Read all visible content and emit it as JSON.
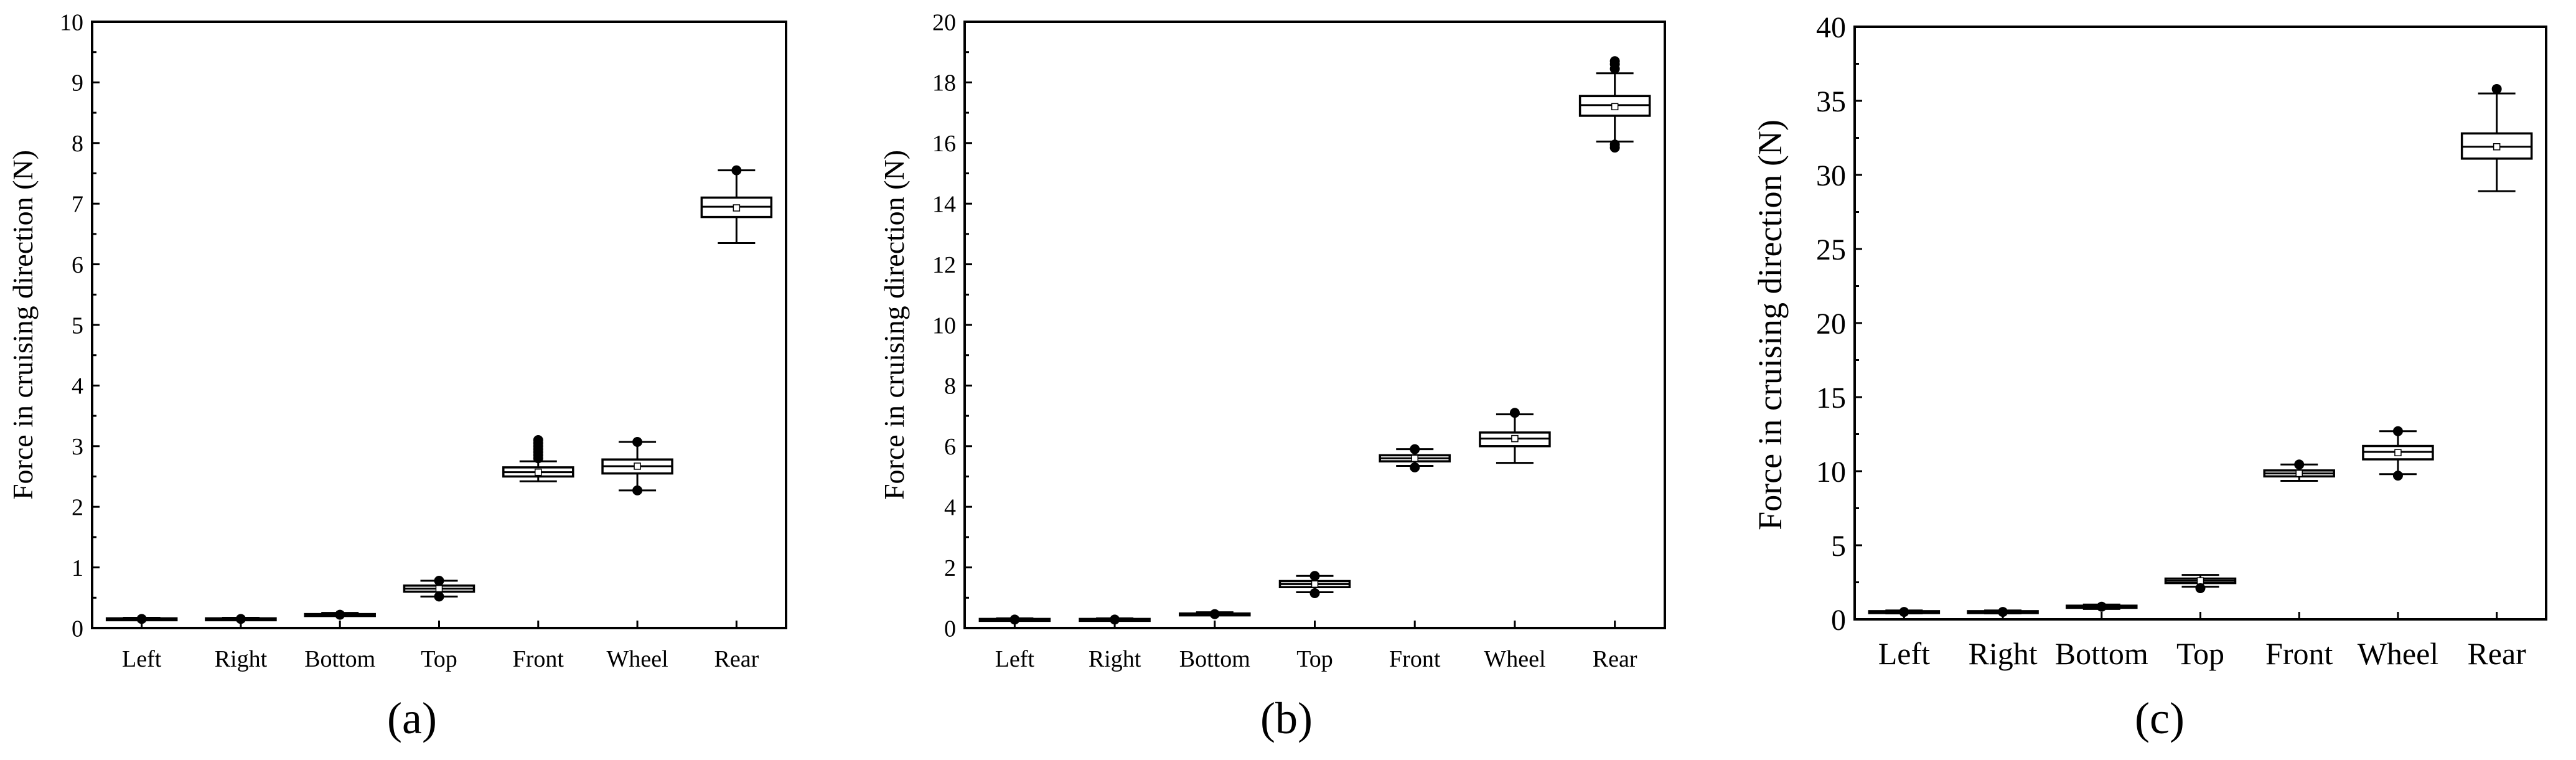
{
  "chart_data": [
    {
      "type": "box",
      "panel_label": "(a)",
      "ylabel": "Force in cruising direction (N)",
      "ylim": [
        0,
        10
      ],
      "yticks": [
        "0",
        "1",
        "2",
        "3",
        "4",
        "5",
        "6",
        "7",
        "8",
        "9",
        "10"
      ],
      "ytick_values": [
        0,
        1,
        2,
        3,
        4,
        5,
        6,
        7,
        8,
        9,
        10
      ],
      "minor_ticks": true,
      "categories": [
        "Left",
        "Right",
        "Bottom",
        "Top",
        "Front",
        "Wheel",
        "Rear"
      ],
      "boxes": [
        {
          "category": "Left",
          "whisker_low": 0.13,
          "q1": 0.14,
          "median": 0.15,
          "q3": 0.16,
          "whisker_high": 0.17,
          "mean": 0.15,
          "outliers": [
            0.15
          ]
        },
        {
          "category": "Right",
          "whisker_low": 0.13,
          "q1": 0.14,
          "median": 0.15,
          "q3": 0.16,
          "whisker_high": 0.17,
          "mean": 0.15,
          "outliers": [
            0.15
          ]
        },
        {
          "category": "Bottom",
          "whisker_low": 0.2,
          "q1": 0.21,
          "median": 0.22,
          "q3": 0.23,
          "whisker_high": 0.25,
          "mean": 0.22,
          "outliers": [
            0.22
          ]
        },
        {
          "category": "Top",
          "whisker_low": 0.52,
          "q1": 0.6,
          "median": 0.65,
          "q3": 0.7,
          "whisker_high": 0.78,
          "mean": 0.65,
          "outliers": [
            0.52,
            0.78
          ]
        },
        {
          "category": "Front",
          "whisker_low": 2.42,
          "q1": 2.5,
          "median": 2.57,
          "q3": 2.65,
          "whisker_high": 2.75,
          "mean": 2.57,
          "outliers": [
            2.8,
            2.85,
            2.9,
            2.95,
            3.0,
            3.05,
            3.1
          ]
        },
        {
          "category": "Wheel",
          "whisker_low": 2.27,
          "q1": 2.55,
          "median": 2.67,
          "q3": 2.78,
          "whisker_high": 3.07,
          "mean": 2.67,
          "outliers": [
            2.27,
            3.07
          ]
        },
        {
          "category": "Rear",
          "whisker_low": 6.35,
          "q1": 6.78,
          "median": 6.95,
          "q3": 7.1,
          "whisker_high": 7.55,
          "mean": 6.93,
          "outliers": [
            7.55
          ]
        }
      ]
    },
    {
      "type": "box",
      "panel_label": "(b)",
      "ylabel": "Force in cruising direction (N)",
      "ylim": [
        0,
        20
      ],
      "yticks": [
        "0",
        "2",
        "4",
        "6",
        "8",
        "10",
        "12",
        "14",
        "16",
        "18",
        "20"
      ],
      "ytick_values": [
        0,
        2,
        4,
        6,
        8,
        10,
        12,
        14,
        16,
        18,
        20
      ],
      "minor_ticks": true,
      "categories": [
        "Left",
        "Right",
        "Bottom",
        "Top",
        "Front",
        "Wheel",
        "Rear"
      ],
      "boxes": [
        {
          "category": "Left",
          "whisker_low": 0.25,
          "q1": 0.27,
          "median": 0.28,
          "q3": 0.3,
          "whisker_high": 0.32,
          "mean": 0.28,
          "outliers": [
            0.28
          ]
        },
        {
          "category": "Right",
          "whisker_low": 0.25,
          "q1": 0.27,
          "median": 0.28,
          "q3": 0.3,
          "whisker_high": 0.32,
          "mean": 0.28,
          "outliers": [
            0.28
          ]
        },
        {
          "category": "Bottom",
          "whisker_low": 0.42,
          "q1": 0.44,
          "median": 0.46,
          "q3": 0.48,
          "whisker_high": 0.52,
          "mean": 0.46,
          "outliers": [
            0.46
          ]
        },
        {
          "category": "Top",
          "whisker_low": 1.18,
          "q1": 1.35,
          "median": 1.45,
          "q3": 1.55,
          "whisker_high": 1.72,
          "mean": 1.45,
          "outliers": [
            1.15,
            1.72
          ]
        },
        {
          "category": "Front",
          "whisker_low": 5.35,
          "q1": 5.5,
          "median": 5.6,
          "q3": 5.7,
          "whisker_high": 5.9,
          "mean": 5.6,
          "outliers": [
            5.3,
            5.9
          ]
        },
        {
          "category": "Wheel",
          "whisker_low": 5.45,
          "q1": 6.0,
          "median": 6.25,
          "q3": 6.45,
          "whisker_high": 7.05,
          "mean": 6.25,
          "outliers": [
            7.1
          ]
        },
        {
          "category": "Rear",
          "whisker_low": 16.05,
          "q1": 16.9,
          "median": 17.25,
          "q3": 17.55,
          "whisker_high": 18.3,
          "mean": 17.2,
          "outliers": [
            15.85,
            15.95,
            18.45,
            18.6,
            18.7
          ]
        }
      ]
    },
    {
      "type": "box",
      "panel_label": "(c)",
      "ylabel": "Force in cruising direction (N)",
      "ylim": [
        0,
        40
      ],
      "yticks": [
        "0",
        "5",
        "10",
        "15",
        "20",
        "25",
        "30",
        "35",
        "40"
      ],
      "ytick_values": [
        0,
        5,
        10,
        15,
        20,
        25,
        30,
        35,
        40
      ],
      "minor_ticks": true,
      "categories": [
        "Left",
        "Right",
        "Bottom",
        "Top",
        "Front",
        "Wheel",
        "Rear"
      ],
      "boxes": [
        {
          "category": "Left",
          "whisker_low": 0.4,
          "q1": 0.45,
          "median": 0.5,
          "q3": 0.55,
          "whisker_high": 0.6,
          "mean": 0.5,
          "outliers": [
            0.5
          ]
        },
        {
          "category": "Right",
          "whisker_low": 0.4,
          "q1": 0.45,
          "median": 0.5,
          "q3": 0.55,
          "whisker_high": 0.6,
          "mean": 0.5,
          "outliers": [
            0.5
          ]
        },
        {
          "category": "Bottom",
          "whisker_low": 0.7,
          "q1": 0.78,
          "median": 0.85,
          "q3": 0.92,
          "whisker_high": 1.0,
          "mean": 0.85,
          "outliers": [
            0.85
          ]
        },
        {
          "category": "Top",
          "whisker_low": 2.2,
          "q1": 2.45,
          "median": 2.6,
          "q3": 2.75,
          "whisker_high": 3.0,
          "mean": 2.6,
          "outliers": [
            2.1
          ]
        },
        {
          "category": "Front",
          "whisker_low": 9.35,
          "q1": 9.65,
          "median": 9.85,
          "q3": 10.05,
          "whisker_high": 10.45,
          "mean": 9.85,
          "outliers": [
            10.45
          ]
        },
        {
          "category": "Wheel",
          "whisker_low": 9.8,
          "q1": 10.8,
          "median": 11.3,
          "q3": 11.7,
          "whisker_high": 12.7,
          "mean": 11.25,
          "outliers": [
            9.7,
            12.7
          ]
        },
        {
          "category": "Rear",
          "whisker_low": 28.9,
          "q1": 31.1,
          "median": 31.9,
          "q3": 32.8,
          "whisker_high": 35.5,
          "mean": 31.9,
          "outliers": [
            35.8
          ]
        }
      ]
    }
  ]
}
